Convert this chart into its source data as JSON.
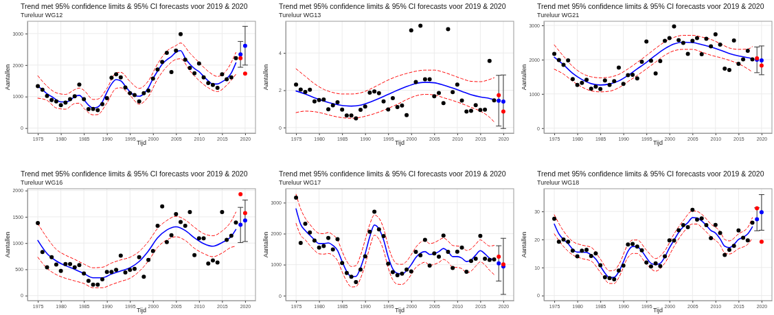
{
  "chart_data": [
    {
      "type": "line",
      "title": "Trend met 95% confidence limits & 95% CI forecasts voor 2019 & 2020",
      "subtitle": "Tureluur WG12",
      "xlabel": "Tijd",
      "ylabel": "Aantallen",
      "xlim": [
        1972.75,
        2022.25
      ],
      "xticks": [
        1975,
        1980,
        1985,
        1990,
        1995,
        2000,
        2005,
        2010,
        2015,
        2020
      ],
      "ylim": [
        -160,
        3390
      ],
      "yticks": [
        0,
        1000,
        2000,
        3000
      ],
      "grid": true,
      "series": [
        {
          "line_style": "dashed",
          "color": "#ff0000",
          "x": [
            1975,
            1977,
            1979,
            1981,
            1983,
            1984,
            1985,
            1987,
            1988,
            1990,
            1992,
            1993,
            1995,
            1997,
            1999,
            2001,
            2003,
            2005,
            2006,
            2008,
            2010,
            2012,
            2014,
            2016,
            2018
          ],
          "values": [
            1660,
            1330,
            1120,
            1070,
            1220,
            1270,
            1200,
            910,
            920,
            1260,
            1750,
            1770,
            1480,
            1260,
            1500,
            2040,
            2440,
            2620,
            2700,
            2380,
            2080,
            1800,
            1640,
            1840,
            2400
          ]
        },
        {
          "line_style": "dashed",
          "color": "#ff0000",
          "x": [
            1975,
            1977,
            1979,
            1981,
            1983,
            1984,
            1985,
            1987,
            1988,
            1990,
            1992,
            1993,
            1995,
            1997,
            1999,
            2001,
            2003,
            2005,
            2006,
            2008,
            2010,
            2012,
            2014,
            2016,
            2018
          ],
          "values": [
            950,
            880,
            640,
            600,
            780,
            790,
            630,
            420,
            430,
            800,
            1260,
            1280,
            1040,
            760,
            1000,
            1560,
            1950,
            2180,
            2200,
            1820,
            1510,
            1280,
            1160,
            1360,
            1710
          ]
        },
        {
          "line_style": "solid",
          "color": "#0000ff",
          "x": [
            1975,
            1976,
            1977,
            1978,
            1979,
            1980,
            1981,
            1982,
            1983,
            1984,
            1985,
            1986,
            1987,
            1988,
            1989,
            1990,
            1991,
            1992,
            1993,
            1994,
            1995,
            1996,
            1997,
            1998,
            1999,
            2000,
            2001,
            2002,
            2003,
            2004,
            2005,
            2006,
            2007,
            2008,
            2009,
            2010,
            2011,
            2012,
            2013,
            2014,
            2015,
            2016,
            2017,
            2018
          ],
          "values": [
            1330,
            1220,
            1090,
            1000,
            900,
            830,
            830,
            880,
            1000,
            1040,
            900,
            730,
            640,
            670,
            830,
            1140,
            1400,
            1540,
            1500,
            1330,
            1150,
            1040,
            1010,
            1090,
            1280,
            1570,
            1810,
            2030,
            2170,
            2270,
            2410,
            2460,
            2220,
            2030,
            1890,
            1790,
            1640,
            1500,
            1400,
            1400,
            1470,
            1570,
            1750,
            2070
          ]
        },
        {
          "type": "scatter",
          "marker": "circle",
          "color": "#000000",
          "x": [
            1975,
            1976,
            1977,
            1978,
            1979,
            1980,
            1981,
            1982,
            1983,
            1984,
            1985,
            1986,
            1987,
            1988,
            1989,
            1990,
            1991,
            1992,
            1993,
            1994,
            1995,
            1996,
            1997,
            1998,
            1999,
            2000,
            2001,
            2002,
            2003,
            2004,
            2005,
            2006,
            2007,
            2008,
            2009,
            2010,
            2011,
            2012,
            2013,
            2014,
            2015,
            2016,
            2017,
            2018
          ],
          "values": [
            1330,
            1220,
            1020,
            890,
            850,
            730,
            810,
            920,
            1010,
            1380,
            920,
            600,
            610,
            570,
            760,
            950,
            1600,
            1710,
            1610,
            1290,
            1110,
            1050,
            850,
            1110,
            1190,
            1570,
            1860,
            2100,
            2390,
            1780,
            2460,
            2980,
            2170,
            1910,
            1740,
            2050,
            1610,
            1430,
            1370,
            1280,
            1710,
            1550,
            1610,
            2220
          ]
        },
        {
          "type": "scatter",
          "marker": "circle",
          "color": "#0000ff",
          "x": [
            2019,
            2020
          ],
          "values": [
            2340,
            2610
          ],
          "errors": [
            [
              1930,
              2750
            ],
            [
              2000,
              3230
            ]
          ]
        },
        {
          "type": "scatter",
          "marker": "circle",
          "color": "#ff0000",
          "x": [
            2019,
            2020
          ],
          "values": [
            2220,
            1730
          ]
        }
      ]
    },
    {
      "type": "line",
      "title": "Trend met 95% confidence limits & 95% CI forecasts voor 2019 & 2020",
      "subtitle": "Tureluur WG13",
      "xlabel": "Tijd",
      "ylabel": "Aantallen",
      "xlim": [
        1972.75,
        2022.25
      ],
      "xticks": [
        1975,
        1980,
        1985,
        1990,
        1995,
        2000,
        2005,
        2010,
        2015,
        2020
      ],
      "ylim": [
        -0.3,
        5.7
      ],
      "yticks": [
        0,
        2,
        4
      ],
      "grid": true,
      "series": [
        {
          "line_style": "dashed",
          "color": "#ff0000",
          "x": [
            1975,
            1977,
            1979,
            1981,
            1983,
            1985,
            1987,
            1989,
            1991,
            1993,
            1995,
            1997,
            1999,
            2001,
            2003,
            2005,
            2007,
            2009,
            2011,
            2013,
            2015,
            2017,
            2018
          ],
          "values": [
            3.15,
            2.75,
            2.35,
            2.05,
            1.88,
            1.8,
            1.8,
            1.86,
            2.05,
            2.3,
            2.55,
            2.75,
            2.9,
            3.02,
            3.08,
            3.08,
            2.97,
            2.8,
            2.62,
            2.48,
            2.46,
            2.58,
            2.67
          ]
        },
        {
          "line_style": "dashed",
          "color": "#ff0000",
          "x": [
            1975,
            1977,
            1979,
            1981,
            1983,
            1985,
            1987,
            1989,
            1991,
            1993,
            1995,
            1997,
            1999,
            2001,
            2003,
            2005,
            2007,
            2009,
            2011,
            2013,
            2015,
            2017,
            2018
          ],
          "values": [
            0.8,
            0.88,
            0.85,
            0.75,
            0.62,
            0.53,
            0.5,
            0.55,
            0.67,
            0.83,
            1.03,
            1.25,
            1.5,
            1.7,
            1.78,
            1.75,
            1.6,
            1.45,
            1.28,
            1.08,
            0.88,
            0.55,
            0.3
          ]
        },
        {
          "line_style": "solid",
          "color": "#0000ff",
          "x": [
            1975,
            1977,
            1979,
            1981,
            1983,
            1985,
            1987,
            1989,
            1991,
            1993,
            1995,
            1997,
            1999,
            2001,
            2003,
            2005,
            2007,
            2009,
            2011,
            2013,
            2015,
            2017,
            2018
          ],
          "values": [
            1.96,
            1.8,
            1.6,
            1.42,
            1.28,
            1.18,
            1.15,
            1.2,
            1.36,
            1.56,
            1.78,
            2.0,
            2.2,
            2.36,
            2.43,
            2.4,
            2.28,
            2.12,
            1.94,
            1.76,
            1.64,
            1.56,
            1.5
          ]
        },
        {
          "type": "scatter",
          "marker": "circle",
          "color": "#000000",
          "x": [
            1975,
            1976,
            1977,
            1978,
            1979,
            1980,
            1981,
            1982,
            1983,
            1984,
            1985,
            1986,
            1987,
            1988,
            1989,
            1990,
            1991,
            1992,
            1993,
            1994,
            1995,
            1996,
            1997,
            1998,
            1999,
            2000,
            2001,
            2002,
            2003,
            2004,
            2005,
            2006,
            2007,
            2008,
            2009,
            2010,
            2011,
            2012,
            2013,
            2014,
            2015,
            2016,
            2017,
            2018
          ],
          "values": [
            2.3,
            2.04,
            1.91,
            2.03,
            1.4,
            1.48,
            1.5,
            0.98,
            1.19,
            1.36,
            0.96,
            0.65,
            0.65,
            0.49,
            0.95,
            1.13,
            1.87,
            1.94,
            1.84,
            1.4,
            0.97,
            1.58,
            1.1,
            1.18,
            0.67,
            5.21,
            2.44,
            5.46,
            2.59,
            2.59,
            1.68,
            1.85,
            1.31,
            5.28,
            1.9,
            2.3,
            1.45,
            0.86,
            0.9,
            1.2,
            0.94,
            0.96,
            3.57,
            1.46
          ]
        },
        {
          "type": "scatter",
          "marker": "circle",
          "color": "#0000ff",
          "x": [
            2019,
            2020
          ],
          "values": [
            1.44,
            1.39
          ],
          "errors": [
            [
              0.08,
              2.8
            ],
            [
              -0.05,
              2.82
            ]
          ]
        },
        {
          "type": "scatter",
          "marker": "circle",
          "color": "#ff0000",
          "x": [
            2019,
            2020
          ],
          "values": [
            1.73,
            0.86
          ]
        }
      ]
    },
    {
      "type": "line",
      "title": "Trend met 95% confidence limits & 95% CI forecasts voor 2019 & 2020",
      "subtitle": "Tureluur WG21",
      "xlabel": "Tijd",
      "ylabel": "Aantallen",
      "xlim": [
        1972.75,
        2022.25
      ],
      "xticks": [
        1975,
        1980,
        1985,
        1990,
        1995,
        2000,
        2005,
        2010,
        2015,
        2020
      ],
      "ylim": [
        -145,
        3120
      ],
      "yticks": [
        0,
        1000,
        2000,
        3000
      ],
      "grid": true,
      "series": [
        {
          "line_style": "dashed",
          "color": "#ff0000",
          "x": [
            1975,
            1977,
            1979,
            1981,
            1983,
            1985,
            1987,
            1989,
            1991,
            1993,
            1995,
            1997,
            1999,
            2001,
            2003,
            2005,
            2007,
            2009,
            2011,
            2013,
            2015,
            2017,
            2018
          ],
          "values": [
            2430,
            2100,
            1800,
            1600,
            1500,
            1470,
            1490,
            1570,
            1730,
            1920,
            2120,
            2330,
            2520,
            2650,
            2710,
            2710,
            2660,
            2590,
            2470,
            2340,
            2300,
            2310,
            2380
          ]
        },
        {
          "line_style": "dashed",
          "color": "#ff0000",
          "x": [
            1975,
            1977,
            1979,
            1981,
            1983,
            1985,
            1987,
            1989,
            1991,
            1993,
            1995,
            1997,
            1999,
            2001,
            2003,
            2005,
            2007,
            2009,
            2011,
            2013,
            2015,
            2017,
            2018
          ],
          "values": [
            1720,
            1580,
            1370,
            1200,
            1090,
            1060,
            1080,
            1180,
            1360,
            1540,
            1730,
            1930,
            2130,
            2260,
            2300,
            2300,
            2220,
            2130,
            2060,
            1980,
            1880,
            1730,
            1640
          ]
        },
        {
          "line_style": "solid",
          "color": "#0000ff",
          "x": [
            1975,
            1977,
            1979,
            1981,
            1983,
            1985,
            1987,
            1989,
            1991,
            1993,
            1995,
            1997,
            1999,
            2001,
            2003,
            2005,
            2007,
            2009,
            2011,
            2013,
            2015,
            2017,
            2018
          ],
          "values": [
            2070,
            1850,
            1600,
            1420,
            1300,
            1260,
            1290,
            1380,
            1540,
            1730,
            1920,
            2130,
            2320,
            2460,
            2510,
            2500,
            2440,
            2370,
            2280,
            2180,
            2110,
            2060,
            2030
          ]
        },
        {
          "type": "scatter",
          "marker": "circle",
          "color": "#000000",
          "x": [
            1975,
            1976,
            1977,
            1978,
            1979,
            1980,
            1981,
            1982,
            1983,
            1984,
            1985,
            1986,
            1987,
            1988,
            1989,
            1990,
            1991,
            1992,
            1993,
            1994,
            1995,
            1996,
            1997,
            1998,
            1999,
            2000,
            2001,
            2002,
            2003,
            2004,
            2005,
            2006,
            2007,
            2008,
            2009,
            2010,
            2011,
            2012,
            2013,
            2014,
            2015,
            2016,
            2017,
            2018
          ],
          "values": [
            2170,
            1990,
            1850,
            1980,
            1430,
            1260,
            1320,
            1410,
            1150,
            1210,
            1140,
            1390,
            1260,
            1370,
            1770,
            1290,
            1550,
            1560,
            1450,
            1940,
            2530,
            1970,
            1600,
            1960,
            2550,
            2630,
            2970,
            2570,
            2490,
            2170,
            2550,
            2630,
            2160,
            2610,
            2390,
            2740,
            2440,
            1740,
            1700,
            2560,
            1880,
            2010,
            2260,
            2010
          ]
        },
        {
          "type": "scatter",
          "marker": "circle",
          "color": "#0000ff",
          "x": [
            2019,
            2020
          ],
          "values": [
            2000,
            1980
          ],
          "errors": [
            [
              1620,
              2370
            ],
            [
              1560,
              2400
            ]
          ]
        },
        {
          "type": "scatter",
          "marker": "circle",
          "color": "#ff0000",
          "x": [
            2019,
            2020
          ],
          "values": [
            2040,
            1830
          ]
        }
      ]
    },
    {
      "type": "line",
      "title": "Trend met 95% confidence limits & 95% CI forecasts voor 2019 & 2020",
      "subtitle": "Tureluur WG16",
      "xlabel": "Tijd",
      "ylabel": "Aantallen",
      "xlim": [
        1972.75,
        2022.25
      ],
      "xticks": [
        1975,
        1980,
        1985,
        1990,
        1995,
        2000,
        2005,
        2010,
        2015,
        2020
      ],
      "ylim": [
        -95,
        2035
      ],
      "yticks": [
        0,
        500,
        1000,
        1500,
        2000
      ],
      "grid": true,
      "series": [
        {
          "line_style": "dashed",
          "color": "#ff0000",
          "x": [
            1975,
            1977,
            1979,
            1981,
            1983,
            1985,
            1987,
            1989,
            1991,
            1993,
            1995,
            1997,
            1999,
            2001,
            2003,
            2005,
            2007,
            2009,
            2011,
            2013,
            2015,
            2017,
            2018
          ],
          "values": [
            1370,
            1100,
            880,
            770,
            690,
            600,
            530,
            540,
            620,
            680,
            730,
            840,
            1030,
            1280,
            1430,
            1510,
            1440,
            1300,
            1180,
            1140,
            1230,
            1420,
            1590
          ]
        },
        {
          "line_style": "dashed",
          "color": "#ff0000",
          "x": [
            1975,
            1977,
            1979,
            1981,
            1983,
            1985,
            1987,
            1989,
            1991,
            1993,
            1995,
            1997,
            1999,
            2001,
            2003,
            2005,
            2007,
            2009,
            2011,
            2013,
            2015,
            2017,
            2018
          ],
          "values": [
            730,
            520,
            400,
            330,
            280,
            230,
            150,
            150,
            210,
            270,
            330,
            460,
            660,
            920,
            1060,
            1120,
            1050,
            900,
            800,
            740,
            810,
            920,
            940
          ]
        },
        {
          "line_style": "solid",
          "color": "#0000ff",
          "x": [
            1975,
            1977,
            1979,
            1981,
            1983,
            1985,
            1987,
            1989,
            1991,
            1993,
            1995,
            1997,
            1999,
            2001,
            2003,
            2005,
            2007,
            2009,
            2011,
            2013,
            2015,
            2017,
            2018
          ],
          "values": [
            1050,
            800,
            660,
            570,
            500,
            420,
            340,
            340,
            410,
            470,
            530,
            650,
            850,
            1100,
            1250,
            1310,
            1240,
            1100,
            990,
            940,
            1010,
            1130,
            1260
          ]
        },
        {
          "type": "scatter",
          "marker": "circle",
          "color": "#000000",
          "x": [
            1975,
            1976,
            1977,
            1978,
            1979,
            1980,
            1981,
            1982,
            1983,
            1984,
            1985,
            1986,
            1987,
            1988,
            1989,
            1990,
            1991,
            1992,
            1993,
            1994,
            1995,
            1996,
            1997,
            1998,
            1999,
            2000,
            2001,
            2002,
            2003,
            2004,
            2005,
            2006,
            2007,
            2008,
            2009,
            2010,
            2011,
            2012,
            2013,
            2014,
            2015,
            2016,
            2017,
            2018
          ],
          "values": [
            1380,
            830,
            540,
            730,
            590,
            470,
            600,
            600,
            540,
            580,
            420,
            280,
            210,
            210,
            310,
            450,
            450,
            490,
            760,
            440,
            490,
            510,
            730,
            360,
            680,
            850,
            1330,
            1700,
            1020,
            1150,
            1550,
            1400,
            1330,
            1590,
            770,
            1090,
            1090,
            610,
            670,
            630,
            1590,
            1060,
            1140,
            1390
          ]
        },
        {
          "type": "scatter",
          "marker": "circle",
          "color": "#0000ff",
          "x": [
            2019,
            2020
          ],
          "values": [
            1350,
            1430
          ],
          "errors": [
            [
              1010,
              1680
            ],
            [
              1030,
              1820
            ]
          ]
        },
        {
          "type": "scatter",
          "marker": "circle",
          "color": "#ff0000",
          "x": [
            2019,
            2020
          ],
          "values": [
            1930,
            1570
          ]
        }
      ]
    },
    {
      "type": "line",
      "title": "Trend met 95% confidence limits & 95% CI forecasts voor 2019 & 2020",
      "subtitle": "Tureluur WG17",
      "xlabel": "Tijd",
      "ylabel": "Aantallen",
      "xlim": [
        1972.75,
        2022.25
      ],
      "xticks": [
        1975,
        1980,
        1985,
        1990,
        1995,
        2000,
        2005,
        2010,
        2015,
        2020
      ],
      "ylim": [
        -160,
        3450
      ],
      "yticks": [
        0,
        1000,
        2000,
        3000
      ],
      "grid": true,
      "series": [
        {
          "line_style": "dashed",
          "color": "#ff0000",
          "x": [
            1975,
            1976,
            1977,
            1978,
            1979,
            1980,
            1981,
            1982,
            1983,
            1984,
            1985,
            1986,
            1987,
            1988,
            1989,
            1990,
            1991,
            1992,
            1993,
            1994,
            1995,
            1996,
            1997,
            1998,
            1999,
            2000,
            2001,
            2002,
            2003,
            2004,
            2005,
            2006,
            2007,
            2008,
            2009,
            2010,
            2011,
            2012,
            2013,
            2014,
            2015,
            2016,
            2017,
            2018
          ],
          "values": [
            3270,
            2800,
            2500,
            2300,
            2120,
            2010,
            2000,
            2040,
            1960,
            1800,
            1430,
            1110,
            940,
            970,
            1300,
            1800,
            2300,
            2600,
            2500,
            2170,
            1600,
            1190,
            1020,
            1010,
            1110,
            1320,
            1560,
            1720,
            1780,
            1680,
            1710,
            1790,
            1860,
            1760,
            1620,
            1600,
            1580,
            1460,
            1510,
            1660,
            1800,
            1700,
            1600,
            1620
          ]
        },
        {
          "line_style": "dashed",
          "color": "#ff0000",
          "x": [
            1975,
            1976,
            1977,
            1978,
            1979,
            1980,
            1981,
            1982,
            1983,
            1984,
            1985,
            1986,
            1987,
            1988,
            1989,
            1990,
            1991,
            1992,
            1993,
            1994,
            1995,
            1996,
            1997,
            1998,
            1999,
            2000,
            2001,
            2002,
            2003,
            2004,
            2005,
            2006,
            2007,
            2008,
            2009,
            2010,
            2011,
            2012,
            2013,
            2014,
            2015,
            2016,
            2017,
            2018
          ],
          "values": [
            2330,
            1950,
            1800,
            1620,
            1460,
            1350,
            1340,
            1360,
            1300,
            1130,
            770,
            460,
            280,
            290,
            560,
            1000,
            1560,
            1950,
            1820,
            1460,
            900,
            510,
            370,
            360,
            470,
            680,
            910,
            1020,
            1080,
            980,
            1010,
            1070,
            1170,
            1080,
            920,
            910,
            870,
            740,
            790,
            950,
            1090,
            990,
            820,
            680
          ]
        },
        {
          "line_style": "solid",
          "color": "#0000ff",
          "x": [
            1975,
            1976,
            1977,
            1978,
            1979,
            1980,
            1981,
            1982,
            1983,
            1984,
            1985,
            1986,
            1987,
            1988,
            1989,
            1990,
            1991,
            1992,
            1993,
            1994,
            1995,
            1996,
            1997,
            1998,
            1999,
            2000,
            2001,
            2002,
            2003,
            2004,
            2005,
            2006,
            2007,
            2008,
            2009,
            2010,
            2011,
            2012,
            2013,
            2014,
            2015,
            2016,
            2017,
            2018
          ],
          "values": [
            2800,
            2300,
            2100,
            1950,
            1800,
            1680,
            1680,
            1700,
            1620,
            1460,
            1100,
            780,
            610,
            620,
            900,
            1350,
            1900,
            2280,
            2150,
            1800,
            1250,
            860,
            720,
            700,
            810,
            1000,
            1230,
            1370,
            1420,
            1330,
            1350,
            1420,
            1520,
            1420,
            1260,
            1260,
            1210,
            1100,
            1150,
            1310,
            1450,
            1350,
            1210,
            1150
          ]
        },
        {
          "type": "scatter",
          "marker": "circle",
          "color": "#000000",
          "x": [
            1975,
            1976,
            1977,
            1978,
            1979,
            1980,
            1981,
            1982,
            1983,
            1984,
            1985,
            1986,
            1987,
            1988,
            1989,
            1990,
            1991,
            1992,
            1993,
            1994,
            1995,
            1996,
            1997,
            1998,
            1999,
            2000,
            2001,
            2002,
            2003,
            2004,
            2005,
            2006,
            2007,
            2008,
            2009,
            2010,
            2011,
            2012,
            2013,
            2014,
            2015,
            2016,
            2017,
            2018
          ],
          "values": [
            3160,
            1700,
            2320,
            2040,
            1780,
            1550,
            1600,
            1860,
            1490,
            1820,
            1050,
            730,
            610,
            440,
            840,
            1270,
            2060,
            2710,
            2140,
            1920,
            1030,
            760,
            660,
            710,
            840,
            780,
            1410,
            1300,
            1800,
            970,
            1360,
            1260,
            1940,
            1410,
            890,
            1420,
            1550,
            770,
            1120,
            1190,
            1930,
            1190,
            1150,
            1170
          ]
        },
        {
          "type": "scatter",
          "marker": "circle",
          "color": "#0000ff",
          "x": [
            2019,
            2020
          ],
          "values": [
            1040,
            940
          ],
          "errors": [
            [
              470,
              1610
            ],
            [
              40,
              1850
            ]
          ]
        },
        {
          "type": "scatter",
          "marker": "circle",
          "color": "#ff0000",
          "x": [
            2019,
            2020
          ],
          "values": [
            1260,
            1010
          ]
        }
      ]
    },
    {
      "type": "line",
      "title": "Trend met 95% confidence limits & 95% CI forecasts voor 2019 & 2020",
      "subtitle": "Tureluur WG18",
      "xlabel": "Tijd",
      "ylabel": "Aantallen",
      "xlim": [
        1972.75,
        2022.25
      ],
      "xticks": [
        1975,
        1980,
        1985,
        1990,
        1995,
        2000,
        2005,
        2010,
        2015,
        2020
      ],
      "ylim": [
        -1.8,
        38.1
      ],
      "yticks": [
        0,
        10,
        20,
        30
      ],
      "grid": true,
      "series": [
        {
          "line_style": "dashed",
          "color": "#ff0000",
          "x": [
            1975,
            1977,
            1979,
            1981,
            1983,
            1985,
            1987,
            1988,
            1989,
            1991,
            1992,
            1993,
            1995,
            1997,
            1999,
            2001,
            2003,
            2005,
            2006,
            2007,
            2009,
            2011,
            2012,
            2013,
            2015,
            2017,
            2018
          ],
          "values": [
            28.8,
            23.0,
            19.3,
            18.0,
            17.2,
            13.0,
            8.8,
            9.0,
            11.0,
            18.2,
            19.8,
            19.8,
            16.2,
            13.2,
            16.0,
            22.0,
            26.7,
            30.2,
            30.0,
            29.0,
            25.5,
            22.8,
            20.0,
            19.5,
            22.0,
            24.3,
            27.8
          ]
        },
        {
          "line_style": "dashed",
          "color": "#ff0000",
          "x": [
            1975,
            1977,
            1979,
            1981,
            1983,
            1985,
            1987,
            1988,
            1989,
            1991,
            1992,
            1993,
            1995,
            1997,
            1999,
            2001,
            2003,
            2005,
            2006,
            2007,
            2009,
            2011,
            2012,
            2013,
            2015,
            2017,
            2018
          ],
          "values": [
            22.0,
            17.5,
            14.5,
            13.2,
            12.3,
            8.3,
            4.3,
            4.3,
            6.4,
            13.6,
            15.0,
            15.0,
            11.2,
            8.7,
            11.6,
            17.5,
            22.5,
            25.5,
            25.5,
            24.3,
            21.0,
            18.0,
            15.2,
            14.8,
            16.7,
            18.3,
            20.5
          ]
        },
        {
          "line_style": "solid",
          "color": "#0000ff",
          "x": [
            1975,
            1976,
            1977,
            1978,
            1979,
            1980,
            1981,
            1982,
            1983,
            1984,
            1985,
            1986,
            1987,
            1988,
            1989,
            1990,
            1991,
            1992,
            1993,
            1994,
            1995,
            1996,
            1997,
            1998,
            1999,
            2000,
            2001,
            2002,
            2003,
            2004,
            2005,
            2006,
            2007,
            2008,
            2009,
            2010,
            2011,
            2012,
            2013,
            2014,
            2015,
            2016,
            2017,
            2018
          ],
          "values": [
            25.5,
            22.0,
            20.0,
            18.5,
            16.5,
            15.5,
            15.5,
            15.4,
            14.5,
            13.0,
            10.5,
            8.0,
            6.4,
            6.5,
            8.5,
            12.0,
            15.8,
            17.5,
            17.4,
            15.9,
            13.5,
            11.5,
            11.0,
            11.5,
            13.8,
            17.0,
            19.8,
            22.5,
            24.5,
            26.0,
            27.8,
            27.7,
            26.6,
            25.0,
            23.2,
            22.3,
            20.2,
            17.6,
            17.1,
            18.2,
            20.0,
            20.8,
            22.0,
            24.5
          ]
        },
        {
          "type": "scatter",
          "marker": "circle",
          "color": "#000000",
          "x": [
            1975,
            1976,
            1977,
            1978,
            1979,
            1980,
            1981,
            1982,
            1983,
            1984,
            1985,
            1986,
            1987,
            1988,
            1989,
            1990,
            1991,
            1992,
            1993,
            1994,
            1995,
            1996,
            1997,
            1998,
            1999,
            2000,
            2001,
            2002,
            2003,
            2004,
            2005,
            2006,
            2007,
            2008,
            2009,
            2010,
            2011,
            2012,
            2013,
            2014,
            2015,
            2016,
            2017,
            2018
          ],
          "values": [
            27.4,
            19.2,
            20.0,
            19.2,
            16.0,
            14.0,
            16.0,
            16.3,
            14.1,
            15.0,
            10.8,
            6.5,
            6.2,
            5.8,
            8.9,
            10.7,
            18.2,
            18.4,
            17.5,
            16.1,
            11.8,
            10.4,
            11.5,
            10.5,
            14.0,
            19.7,
            19.6,
            23.3,
            25.1,
            24.4,
            30.6,
            27.1,
            27.5,
            25.1,
            20.5,
            25.2,
            22.3,
            14.5,
            16.3,
            17.7,
            23.2,
            20.6,
            19.7,
            26.0
          ]
        },
        {
          "type": "scatter",
          "marker": "circle",
          "color": "#0000ff",
          "x": [
            2019,
            2020
          ],
          "values": [
            27.2,
            29.7
          ],
          "errors": [
            [
              23.1,
              31.3
            ],
            [
              23.3,
              36.0
            ]
          ]
        },
        {
          "type": "scatter",
          "marker": "circle",
          "color": "#ff0000",
          "x": [
            2019,
            2020
          ],
          "values": [
            31.1,
            19.2
          ]
        }
      ]
    }
  ]
}
